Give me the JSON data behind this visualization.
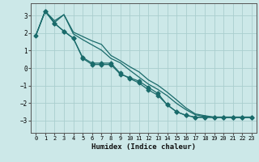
{
  "xlabel": "Humidex (Indice chaleur)",
  "xlim": [
    -0.5,
    23.5
  ],
  "ylim": [
    -3.7,
    3.7
  ],
  "xticks": [
    0,
    1,
    2,
    3,
    4,
    5,
    6,
    7,
    8,
    9,
    10,
    11,
    12,
    13,
    14,
    15,
    16,
    17,
    18,
    19,
    20,
    21,
    22,
    23
  ],
  "yticks": [
    -3,
    -2,
    -1,
    0,
    1,
    2,
    3
  ],
  "background_color": "#cce8e8",
  "grid_color": "#aacece",
  "line_color": "#1a6b6b",
  "lines": [
    {
      "x": [
        0,
        1,
        2,
        3,
        4,
        5,
        6,
        7,
        8,
        9,
        10,
        11,
        12,
        13,
        14,
        15,
        16,
        17,
        18,
        19,
        20,
        21,
        22,
        23
      ],
      "y": [
        1.85,
        3.25,
        2.55,
        2.1,
        1.7,
        0.6,
        0.28,
        0.28,
        0.28,
        -0.3,
        -0.6,
        -0.85,
        -1.25,
        -1.55,
        -2.1,
        -2.5,
        -2.7,
        -2.82,
        -2.82,
        -2.82,
        -2.82,
        -2.82,
        -2.82,
        -2.82
      ],
      "marker": true
    },
    {
      "x": [
        0,
        1,
        2,
        3,
        4,
        5,
        6,
        7,
        8,
        9,
        10,
        11,
        12,
        13,
        14,
        15,
        16,
        17,
        18,
        19,
        20,
        21,
        22,
        23
      ],
      "y": [
        1.85,
        3.25,
        2.7,
        3.05,
        2.05,
        1.8,
        1.55,
        1.35,
        0.72,
        0.42,
        0.08,
        -0.22,
        -0.68,
        -0.98,
        -1.38,
        -1.82,
        -2.28,
        -2.62,
        -2.72,
        -2.8,
        -2.8,
        -2.8,
        -2.8,
        -2.8
      ],
      "marker": false
    },
    {
      "x": [
        0,
        1,
        2,
        3,
        4,
        5,
        6,
        7,
        8,
        9,
        10,
        11,
        12,
        13,
        14,
        15,
        16,
        17,
        18,
        19,
        20,
        21,
        22,
        23
      ],
      "y": [
        1.85,
        3.25,
        2.6,
        3.05,
        1.95,
        1.62,
        1.32,
        1.02,
        0.55,
        0.3,
        -0.12,
        -0.52,
        -0.92,
        -1.22,
        -1.58,
        -2.02,
        -2.38,
        -2.67,
        -2.77,
        -2.82,
        -2.82,
        -2.82,
        -2.82,
        -2.82
      ],
      "marker": false
    },
    {
      "x": [
        1,
        2,
        3,
        4,
        5,
        6,
        7,
        8,
        9,
        10,
        11,
        12,
        13,
        14,
        15,
        16,
        17,
        18,
        19,
        20,
        21,
        22,
        23
      ],
      "y": [
        3.25,
        2.55,
        2.1,
        1.7,
        0.55,
        0.2,
        0.2,
        0.2,
        -0.35,
        -0.55,
        -0.75,
        -1.1,
        -1.45,
        -2.1,
        -2.5,
        -2.7,
        -2.8,
        -2.8,
        -2.8,
        -2.8,
        -2.8,
        -2.8,
        -2.8
      ],
      "marker": true
    }
  ],
  "marker_size": 2.5,
  "line_width": 0.9
}
